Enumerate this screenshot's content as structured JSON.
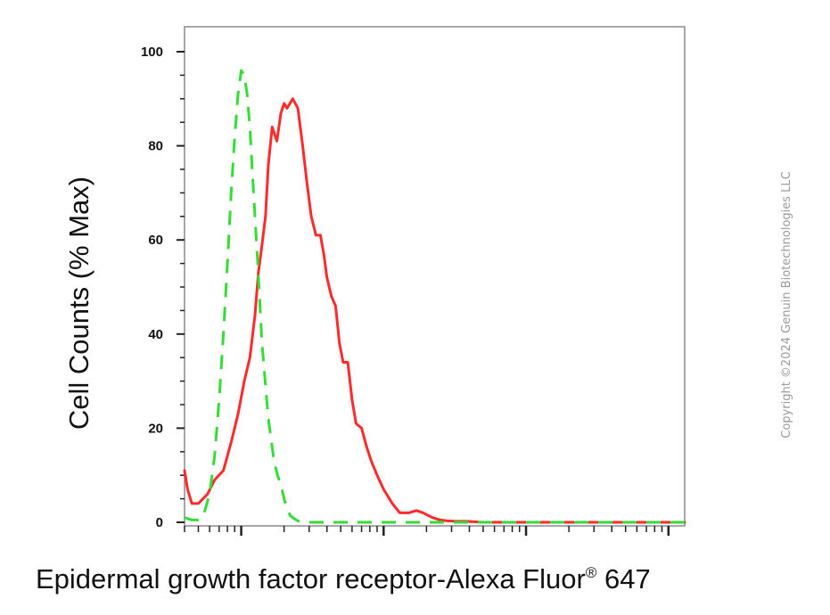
{
  "chart_data": {
    "type": "line",
    "title": "",
    "xlabel": "Epidermal growth factor receptor-Alexa Fluor",
    "xlabel_superscript": "®",
    "xlabel_suffix": " 647",
    "ylabel": "Cell Counts (% Max)",
    "x_scale": "log",
    "xlim": [
      0.4,
      1300
    ],
    "ylim": [
      0,
      100
    ],
    "y_ticks": [
      0,
      20,
      40,
      60,
      80,
      100
    ],
    "y_tick_labels": [
      "0",
      "20",
      "40",
      "60",
      "80",
      "100"
    ],
    "x_major_ticks": [
      1,
      10,
      100,
      1000
    ],
    "grid": false,
    "legend": "none",
    "series": [
      {
        "color": "#ff2a2a",
        "line_style": "solid",
        "x": [
          0.4,
          0.42,
          0.45,
          0.5,
          0.58,
          0.65,
          0.75,
          0.85,
          0.95,
          1.05,
          1.15,
          1.25,
          1.32,
          1.4,
          1.48,
          1.55,
          1.65,
          1.78,
          1.9,
          2.0,
          2.1,
          2.3,
          2.5,
          2.7,
          2.9,
          3.1,
          3.35,
          3.6,
          3.8,
          4.0,
          4.3,
          4.6,
          4.9,
          5.2,
          5.6,
          6.0,
          6.4,
          7.0,
          7.6,
          8.2,
          9.0,
          10.0,
          11.5,
          13.0,
          15.0,
          17.0,
          19.0,
          22.0,
          25.0,
          28.0,
          32.0,
          38.0,
          50.0,
          80.0,
          150.0,
          400.0,
          1000.0,
          1300.0
        ],
        "y": [
          11,
          7,
          4,
          4,
          6,
          9,
          11,
          17,
          23,
          30,
          35,
          44,
          53,
          59,
          65,
          76,
          84,
          81,
          87,
          89,
          88,
          90,
          88,
          80,
          72,
          65,
          61,
          61,
          57,
          52,
          48,
          46,
          38,
          34,
          34,
          26,
          21,
          20,
          16,
          13,
          10,
          7,
          4,
          2,
          2,
          2.5,
          2,
          1,
          0.5,
          0.3,
          0.2,
          0.2,
          0,
          0,
          0,
          0,
          0,
          0
        ]
      },
      {
        "color": "#33dd33",
        "line_style": "dashed",
        "x": [
          0.4,
          0.45,
          0.5,
          0.55,
          0.6,
          0.65,
          0.7,
          0.75,
          0.8,
          0.85,
          0.9,
          0.95,
          1.0,
          1.05,
          1.1,
          1.15,
          1.2,
          1.3,
          1.4,
          1.55,
          1.7,
          1.8,
          1.9,
          2.0,
          2.1,
          2.2,
          2.35,
          2.5,
          2.7,
          3.0,
          3.5,
          5.0,
          10.0,
          30.0,
          100.0,
          1300.0
        ],
        "y": [
          1,
          0.5,
          0.5,
          2,
          6,
          14,
          26,
          40,
          55,
          70,
          82,
          91,
          96,
          95,
          91,
          84,
          74,
          56,
          38,
          22,
          13,
          10,
          8,
          5,
          3,
          1.5,
          0.8,
          0.3,
          0.1,
          0,
          0,
          0,
          0,
          0,
          0,
          0
        ]
      }
    ]
  },
  "watermark": "Copyright ©2024 Genuin Biotechnologies LLC"
}
